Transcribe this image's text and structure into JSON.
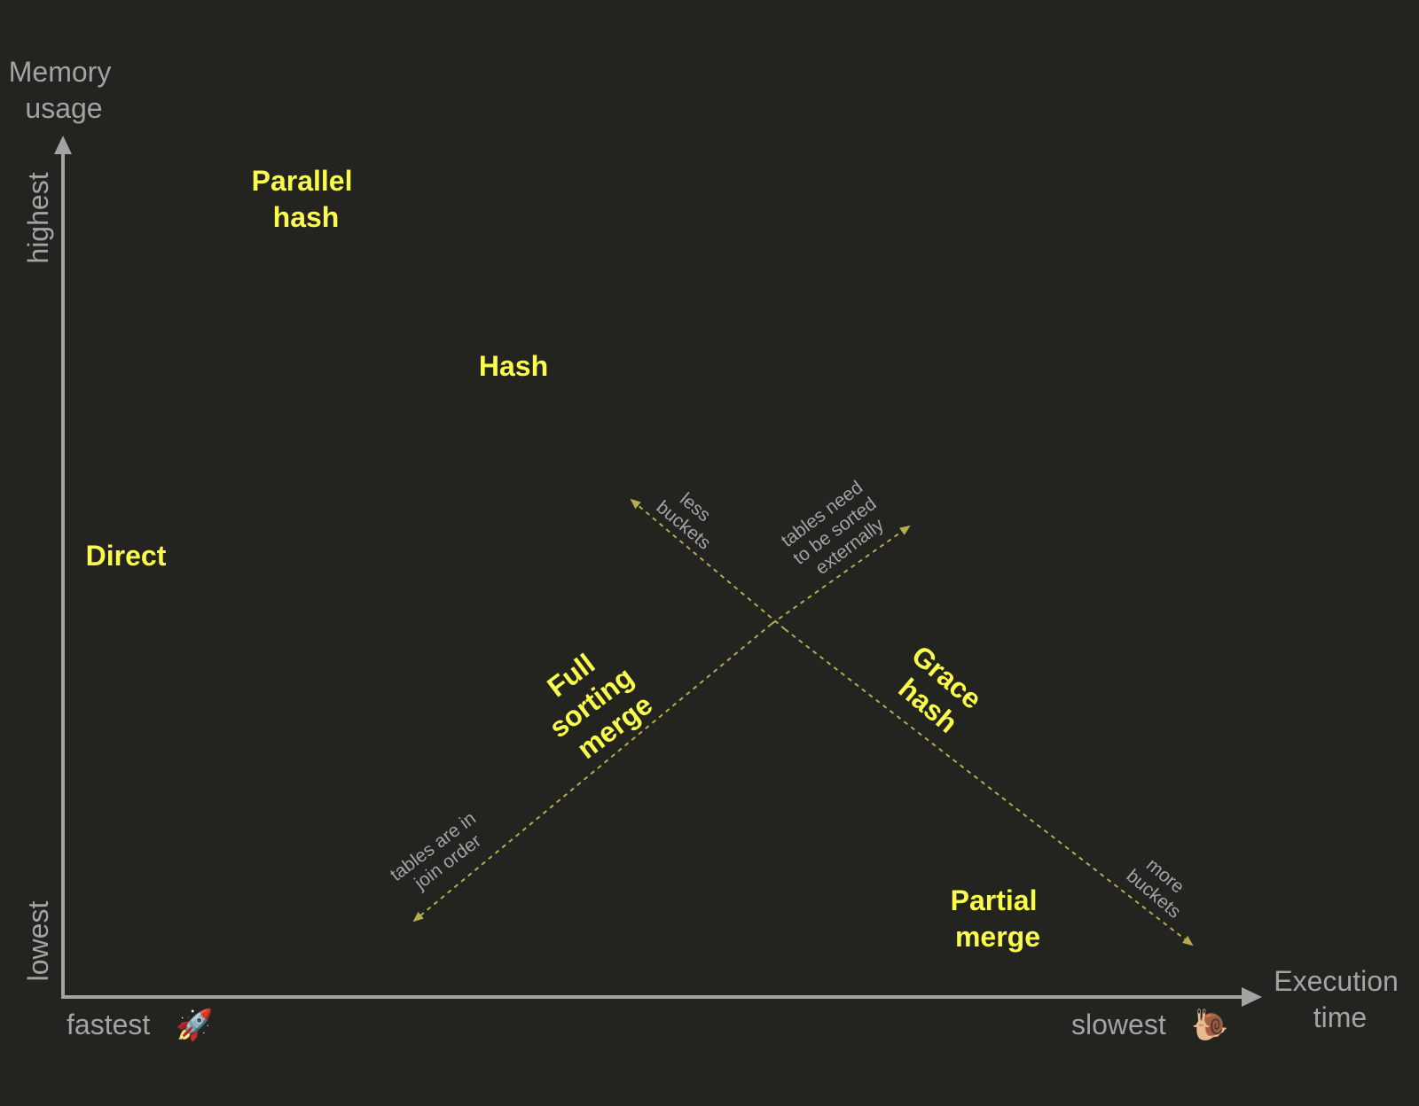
{
  "axes": {
    "y_title": [
      "Memory",
      "usage"
    ],
    "y_high": "highest",
    "y_low": "lowest",
    "x_title": [
      "Execution",
      "time"
    ],
    "x_fast": "fastest",
    "x_slow": "slowest",
    "x_fast_icon": "rocket-icon",
    "x_slow_icon": "snail-icon",
    "fast_emoji": "🚀",
    "slow_emoji": "🐌"
  },
  "algorithms": {
    "parallel_hash": [
      "Parallel",
      "hash"
    ],
    "hash": "Hash",
    "direct": "Direct",
    "full_sorting_merge": [
      "Full",
      "sorting",
      "merge"
    ],
    "grace_hash": [
      "Grace",
      "hash"
    ],
    "partial_merge": [
      "Partial",
      "merge"
    ]
  },
  "notes": {
    "less_buckets": [
      "less",
      "buckets"
    ],
    "more_buckets": [
      "more",
      "buckets"
    ],
    "sorted_externally": [
      "tables need",
      "to be sorted",
      "externally"
    ],
    "join_order": [
      "tables are in",
      "join order"
    ]
  },
  "colors": {
    "background": "#232320",
    "axis": "#a3a3a3",
    "algorithm_label": "#fbfb4c",
    "trend_arrow": "#b5ac50"
  }
}
